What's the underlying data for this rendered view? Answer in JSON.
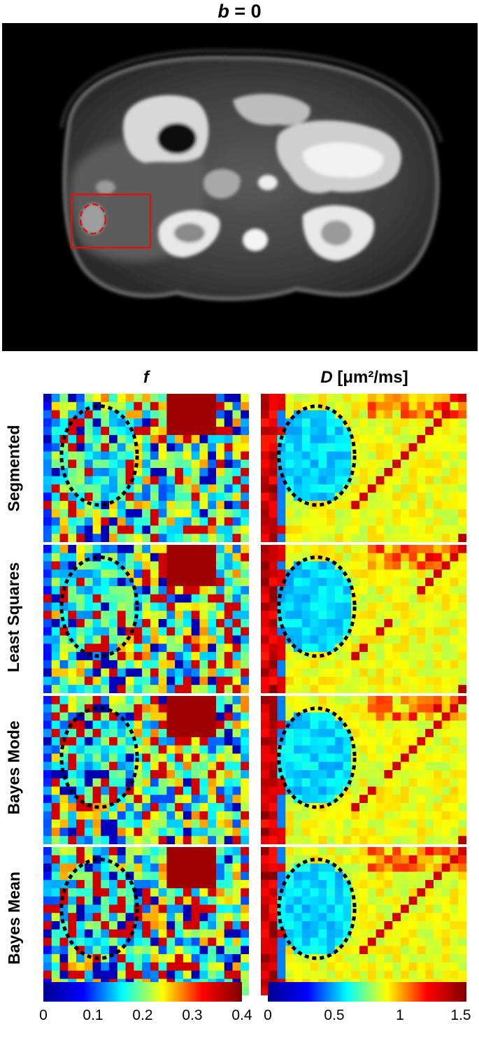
{
  "title": {
    "var": "b",
    "rest": " = 0"
  },
  "columns": [
    {
      "var": "f",
      "rest": ""
    },
    {
      "var": "D",
      "rest": " [μm²/ms]"
    }
  ],
  "rows": [
    "Segmented",
    "Least Squares",
    "Bayes Mode",
    "Bayes Mean"
  ],
  "colorbar_f": {
    "ticks": [
      "0",
      "0.1",
      "0.2",
      "0.3",
      "0.4"
    ],
    "range": [
      0,
      0.4
    ]
  },
  "colorbar_d": {
    "ticks": [
      "0",
      "0.5",
      "1",
      "1.5"
    ],
    "range": [
      0,
      1.5
    ]
  },
  "colors": {
    "roi_box": "#e01010",
    "roi_outline": "#000000",
    "background": "#000000"
  }
}
